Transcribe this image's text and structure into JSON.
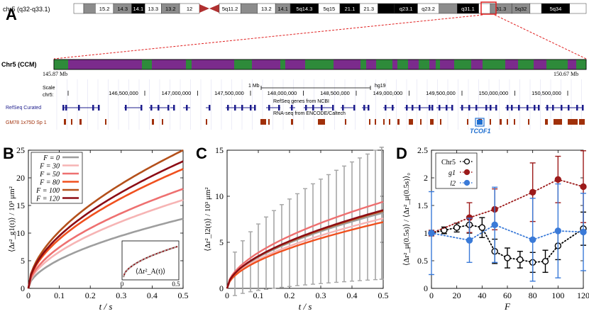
{
  "panel_labels": {
    "A": "A",
    "B": "B",
    "C": "C",
    "D": "D"
  },
  "ideogram": {
    "label": "chr5 (q32-q33.1)",
    "bands": [
      {
        "name": "",
        "shade": "#ffffff"
      },
      {
        "name": "",
        "shade": "#8c8c8c"
      },
      {
        "name": "15.2",
        "shade": "#ffffff"
      },
      {
        "name": "14.3",
        "shade": "#8c8c8c"
      },
      {
        "name": "14.1",
        "shade": "#000000"
      },
      {
        "name": "13.3",
        "shade": "#ffffff"
      },
      {
        "name": "13.2",
        "shade": "#8c8c8c"
      },
      {
        "name": "12",
        "shade": "#ffffff"
      },
      {
        "name": "",
        "shade": "centromere"
      },
      {
        "name": "5q11.2",
        "shade": "#ffffff"
      },
      {
        "name": "",
        "shade": "#8c8c8c"
      },
      {
        "name": "13.2",
        "shade": "#ffffff"
      },
      {
        "name": "14.1",
        "shade": "#8c8c8c"
      },
      {
        "name": "5q14.3",
        "shade": "#000000"
      },
      {
        "name": "5q15",
        "shade": "#ffffff"
      },
      {
        "name": "21.1",
        "shade": "#000000"
      },
      {
        "name": "21.3",
        "shade": "#ffffff"
      },
      {
        "name": "",
        "shade": "#000000"
      },
      {
        "name": "q23.1",
        "shade": "#000000"
      },
      {
        "name": "q23.2",
        "shade": "#ffffff"
      },
      {
        "name": "",
        "shade": "#8c8c8c"
      },
      {
        "name": "q31.1",
        "shade": "#000000"
      },
      {
        "name": "",
        "shade": "#ffffff"
      },
      {
        "name": "31.3",
        "shade": "#8c8c8c"
      },
      {
        "name": "5q32",
        "shade": "#8c8c8c"
      },
      {
        "name": "",
        "shade": "#ffffff"
      },
      {
        "name": "5q34",
        "shade": "#000000"
      },
      {
        "name": "",
        "shade": "#ffffff"
      }
    ]
  },
  "ccm_track": {
    "label": "Chr5 (CCM)",
    "start": "145.87 Mb",
    "end": "150.67 Mb",
    "color_a": "#7b2b8c",
    "color_b": "#2e8b3a"
  },
  "browser": {
    "scale_label": "Scale",
    "scale_value": "1 Mb",
    "assembly": "hg19",
    "chrom": "chr5:",
    "positions": [
      "146,500,000",
      "147,000,000",
      "147,500,000",
      "148,000,000",
      "148,500,000",
      "149,000,000",
      "149,500,000",
      "150,000,000",
      "150,500,000"
    ],
    "refseq_title": "RefSeq genes from NCBI",
    "refseq_label": "RefSeq Curated",
    "rnaseq_title": "RNA-seq from ENCODE/Caltech",
    "rnaseq_label": "GM78 1x75D Sp 1",
    "gene_highlight": "TCOF1",
    "refseq_color": "#1c1c8c",
    "rnaseq_color": "#a0300a",
    "highlight_color": "#1f6fd0"
  },
  "chart_data": [
    {
      "panel": "B",
      "type": "line",
      "ylabel": "⟨Δr²_g1(t)⟩ / 10³ μm²",
      "xlabel": "t / s",
      "xlim": [
        0,
        0.5
      ],
      "ylim": [
        0,
        25
      ],
      "xticks": [
        "0",
        "0.1",
        "0.2",
        "0.3",
        "0.4",
        "0.5"
      ],
      "yticks": [
        "0",
        "5",
        "10",
        "15",
        "20",
        "25"
      ],
      "legend": "top-left",
      "series": [
        {
          "name": "F = 0",
          "color": "#9e9e9e",
          "A": 12.6
        },
        {
          "name": "F = 30",
          "color": "#f6b4b4",
          "A": 16.0
        },
        {
          "name": "F = 50",
          "color": "#ee7070",
          "A": 18.0
        },
        {
          "name": "F = 80",
          "color": "#f0501e",
          "A": 21.6
        },
        {
          "name": "F = 100",
          "color": "#b4501a",
          "A": 25.0
        },
        {
          "name": "F = 120",
          "color": "#8c0c14",
          "A": 23.0
        }
      ],
      "inset": {
        "label": "⟨Δr²_A(t)⟩",
        "xticks": [
          "0",
          "0.5"
        ]
      }
    },
    {
      "panel": "C",
      "type": "line",
      "ylabel": "⟨Δr²_l2(t)⟩ / 10³ μm²",
      "xlabel": "t / s",
      "xlim": [
        0,
        0.5
      ],
      "ylim": [
        0,
        15
      ],
      "xticks": [
        "0",
        "0.1",
        "0.2",
        "0.3",
        "0.4",
        "0.5"
      ],
      "yticks": [
        "0",
        "5",
        "10",
        "15"
      ],
      "series": [
        {
          "name": "F = 0",
          "color": "#9e9e9e",
          "A": 8.2
        },
        {
          "name": "F = 30",
          "color": "#f6b4b4",
          "A": 7.6
        },
        {
          "name": "F = 50",
          "color": "#ee7070",
          "A": 9.4
        },
        {
          "name": "F = 80",
          "color": "#f0501e",
          "A": 7.2
        },
        {
          "name": "F = 100",
          "color": "#b4501a",
          "A": 8.4
        },
        {
          "name": "F = 120",
          "color": "#8c0c14",
          "A": 8.5
        }
      ],
      "errorbars": {
        "series": "F = 0",
        "half_width": "grows with t"
      }
    },
    {
      "panel": "D",
      "type": "scatter",
      "ylabel": "⟨Δr²_μ(0.5s)⟩ / ⟨Δr²_μ(0.5s)⟩₀",
      "xlabel": "F",
      "xlim": [
        0,
        120
      ],
      "ylim": [
        0,
        2.5
      ],
      "xticks": [
        "0",
        "20",
        "40",
        "60",
        "80",
        "100",
        "120"
      ],
      "yticks": [
        "0",
        "0.5",
        "1",
        "1.5",
        "2",
        "2.5"
      ],
      "legend": "top-left",
      "series": [
        {
          "name": "Chr5",
          "color": "#000000",
          "open": true,
          "x": [
            0,
            10,
            20,
            30,
            40,
            50,
            60,
            70,
            80,
            90,
            100,
            120
          ],
          "y": [
            1.0,
            1.05,
            1.1,
            1.15,
            1.1,
            0.67,
            0.55,
            0.52,
            0.47,
            0.49,
            0.77,
            1.08
          ],
          "err": [
            0.05,
            0.06,
            0.08,
            0.15,
            0.18,
            0.22,
            0.18,
            0.15,
            0.18,
            0.2,
            0.25,
            0.3
          ]
        },
        {
          "name": "g1",
          "color": "#9c1a1a",
          "open": false,
          "x": [
            0,
            30,
            50,
            80,
            100,
            120
          ],
          "y": [
            1.0,
            1.28,
            1.43,
            1.74,
            1.97,
            1.84
          ],
          "err": [
            0.05,
            0.27,
            0.37,
            0.53,
            0.42,
            0.65
          ]
        },
        {
          "name": "l2",
          "color": "#3a7ad8",
          "open": false,
          "x": [
            0,
            30,
            50,
            80,
            100,
            120
          ],
          "y": [
            1.0,
            0.87,
            1.15,
            0.88,
            1.04,
            1.02
          ],
          "err": [
            0.75,
            0.4,
            0.68,
            0.75,
            0.85,
            0.7
          ]
        }
      ]
    }
  ]
}
